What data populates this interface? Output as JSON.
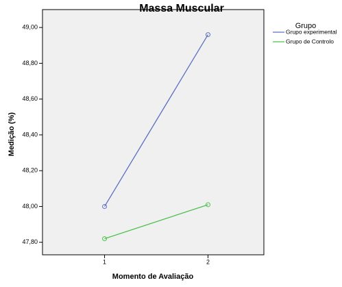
{
  "chart_data": {
    "type": "line",
    "title": "Massa Muscular",
    "x_label": "Momento de Avaliação",
    "y_label": "Medição (%)",
    "legend_title": "Grupo",
    "legend": "right-outside",
    "grid": false,
    "x": [
      1,
      2
    ],
    "xlim": [
      0.4,
      2.54
    ],
    "xticks": [
      1,
      2
    ],
    "ylim": [
      47.73,
      49.1
    ],
    "yticks": [
      {
        "value": 47.8,
        "label": "47,80"
      },
      {
        "value": 48.0,
        "label": "48,00"
      },
      {
        "value": 48.2,
        "label": "48,20"
      },
      {
        "value": 48.4,
        "label": "48,40"
      },
      {
        "value": 48.6,
        "label": "48,60"
      },
      {
        "value": 48.8,
        "label": "48,80"
      },
      {
        "value": 49.0,
        "label": "49,00"
      }
    ],
    "series": [
      {
        "name": "Grupo experimental",
        "color": "#5b6fc2",
        "values": [
          48.0,
          48.96
        ]
      },
      {
        "name": "Grupo de Controlo",
        "color": "#4cc24c",
        "values": [
          47.82,
          48.01
        ]
      }
    ]
  }
}
